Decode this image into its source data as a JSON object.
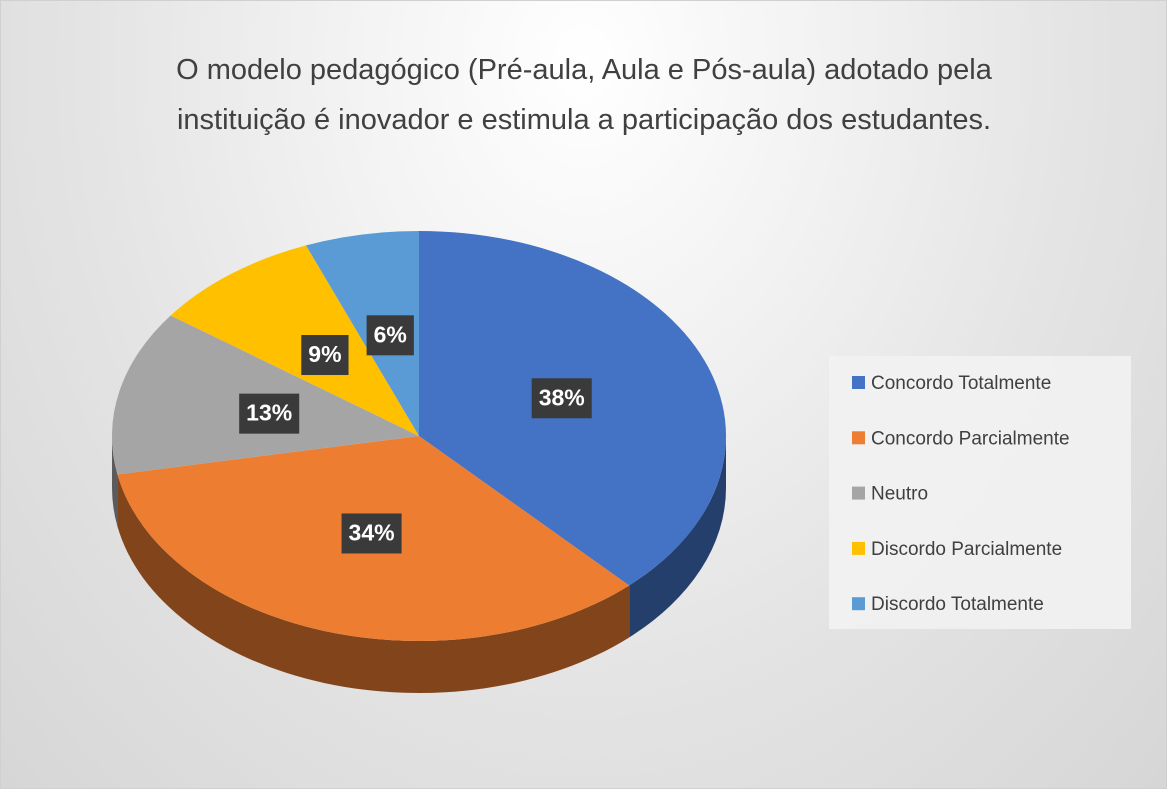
{
  "chart_data": {
    "type": "pie",
    "title": "O modelo pedagógico (Pré-aula, Aula e Pós-aula) adotado pela instituição é inovador e estimula a participação dos estudantes.",
    "categories": [
      "Concordo Totalmente",
      "Concordo Parcialmente",
      "Neutro",
      "Discordo Parcialmente",
      "Discordo Totalmente"
    ],
    "values": [
      38,
      34,
      13,
      9,
      6
    ],
    "value_labels": [
      "38%",
      "34%",
      "13%",
      "9%",
      "6%"
    ],
    "colors": [
      "#4472c4",
      "#ed7d31",
      "#a5a5a5",
      "#ffc000",
      "#5b9bd5"
    ],
    "legend": "right"
  }
}
